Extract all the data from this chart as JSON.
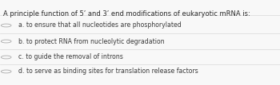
{
  "title": "A principle function of 5’ and 3’ end modifications of eukaryotic mRNA is:",
  "options": [
    "a. to ensure that all nucleotides are phosphorylated",
    "b. to protect RNA from nucleolytic degradation",
    "c. to guide the removal of introns",
    "d. to serve as binding sites for translation release factors"
  ],
  "bg_color": "#f8f8f8",
  "title_color": "#2a2a2a",
  "option_color": "#3a3a3a",
  "line_color": "#d8d8d8",
  "circle_edgecolor": "#aaaaaa",
  "title_fontsize": 6.0,
  "option_fontsize": 5.6,
  "title_fontweight": "normal",
  "figsize": [
    3.5,
    1.07
  ],
  "dpi": 100
}
